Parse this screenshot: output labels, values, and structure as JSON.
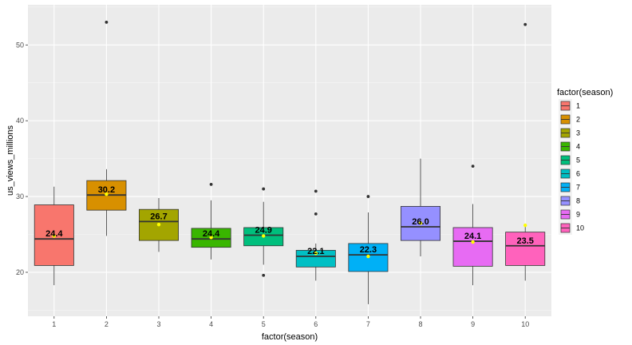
{
  "chart_data": {
    "type": "box",
    "xlabel": "factor(season)",
    "ylabel": "us_views_millions",
    "ylim": [
      14.2,
      55.3
    ],
    "y_ticks": [
      20,
      30,
      40,
      50
    ],
    "categories": [
      "1",
      "2",
      "3",
      "4",
      "5",
      "6",
      "7",
      "8",
      "9",
      "10"
    ],
    "legend": {
      "title": "factor(season)",
      "position": "right"
    },
    "grid": true,
    "series": [
      {
        "season": "1",
        "color": "#F8766D",
        "min": 18.3,
        "q1": 20.9,
        "median": 24.4,
        "q3": 28.9,
        "max": 31.3,
        "mean": 24.8,
        "outliers": [],
        "label": "24.4"
      },
      {
        "season": "2",
        "color": "#D89000",
        "min": 24.8,
        "q1": 28.2,
        "median": 30.2,
        "q3": 32.1,
        "max": 33.6,
        "mean": 30.3,
        "outliers": [
          53.0
        ],
        "label": "30.2"
      },
      {
        "season": "3",
        "color": "#A3A500",
        "min": 22.7,
        "q1": 24.2,
        "median": 26.7,
        "q3": 28.3,
        "max": 29.8,
        "mean": 26.3,
        "outliers": [],
        "label": "26.7"
      },
      {
        "season": "4",
        "color": "#39B600",
        "min": 21.7,
        "q1": 23.3,
        "median": 24.4,
        "q3": 25.8,
        "max": 29.5,
        "mean": 24.6,
        "outliers": [
          31.6
        ],
        "label": "24.4"
      },
      {
        "season": "5",
        "color": "#00BF7D",
        "min": 21.0,
        "q1": 23.5,
        "median": 24.9,
        "q3": 25.9,
        "max": 29.3,
        "mean": 24.8,
        "outliers": [
          19.6,
          31.0
        ],
        "label": "24.9"
      },
      {
        "season": "6",
        "color": "#00BFC4",
        "min": 18.9,
        "q1": 20.7,
        "median": 22.1,
        "q3": 22.9,
        "max": 23.8,
        "mean": 22.5,
        "outliers": [
          27.7,
          30.7
        ],
        "label": "22.1"
      },
      {
        "season": "7",
        "color": "#00B0F6",
        "min": 15.8,
        "q1": 20.1,
        "median": 22.3,
        "q3": 23.8,
        "max": 27.9,
        "mean": 22.1,
        "outliers": [
          30.0
        ],
        "label": "22.3"
      },
      {
        "season": "8",
        "color": "#9590FF",
        "min": 22.1,
        "q1": 24.2,
        "median": 26.0,
        "q3": 28.7,
        "max": 35.0,
        "mean": 26.5,
        "outliers": [],
        "label": "26.0"
      },
      {
        "season": "9",
        "color": "#E76BF3",
        "min": 18.3,
        "q1": 20.8,
        "median": 24.1,
        "q3": 25.9,
        "max": 29.0,
        "mean": 24.0,
        "outliers": [
          34.0
        ],
        "label": "24.1"
      },
      {
        "season": "10",
        "color": "#FF62BC",
        "min": 18.9,
        "q1": 20.9,
        "median": 23.5,
        "q3": 25.3,
        "max": 26.3,
        "mean": 26.2,
        "outliers": [
          52.7
        ],
        "label": "23.5"
      }
    ]
  }
}
